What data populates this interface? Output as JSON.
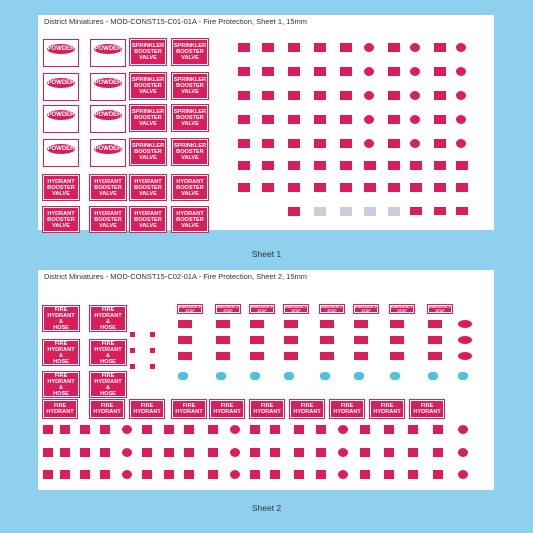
{
  "sheet_1": {
    "title": "District Miniatures - MOD-CONST15-C01-01A - Fire Protection, Sheet 1, 15mm",
    "caption": "Sheet 1",
    "powder": "POWDER",
    "sprinkler": "SPRINKLER BOOSTER VALVE",
    "hydrant_booster": "HYDRANT BOOSTER VALVE"
  },
  "sheet_2": {
    "title": "District Miniatures - MOD-CONST15-C02-01A - Fire Protection, Sheet 2, 15mm",
    "caption": "Sheet 2",
    "hydrant_hose": "FIRE HYDRANT & HOSE",
    "hydrant": "FIRE HYDRANT",
    "emergency_stop": "EMERGENCY STOP"
  }
}
